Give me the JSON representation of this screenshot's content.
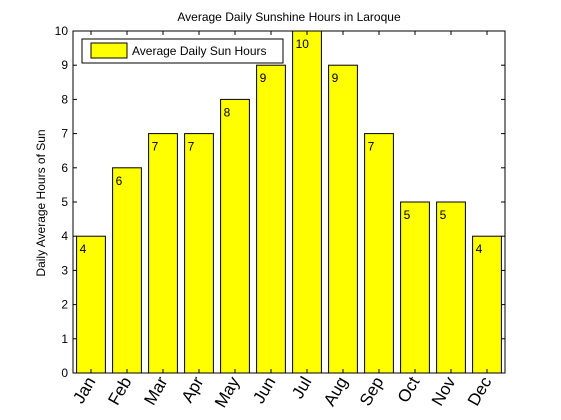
{
  "chart_data": {
    "type": "bar",
    "title": "Average Daily Sunshine Hours in Laroque",
    "xlabel": "",
    "ylabel": "Daily Average Hours of Sun",
    "categories": [
      "Jan",
      "Feb",
      "Mar",
      "Apr",
      "May",
      "Jun",
      "Jul",
      "Aug",
      "Sep",
      "Oct",
      "Nov",
      "Dec"
    ],
    "series": [
      {
        "name": "Average Daily Sun Hours",
        "values": [
          4,
          6,
          7,
          7,
          8,
          9,
          10,
          9,
          7,
          5,
          5,
          4
        ],
        "data_labels": [
          "4",
          "6",
          "7",
          "7",
          "8",
          "9",
          "10",
          "9",
          "7",
          "5",
          "5",
          "4"
        ]
      }
    ],
    "ylim": [
      0,
      10
    ],
    "yticks": [
      0,
      1,
      2,
      3,
      4,
      5,
      6,
      7,
      8,
      9,
      10
    ],
    "ytick_labels": [
      "0",
      "1",
      "2",
      "3",
      "4",
      "5",
      "6",
      "7",
      "8",
      "9",
      "10"
    ],
    "grid": false,
    "legend_position": "top-left",
    "colors": {
      "bar_fill": "#ffff00",
      "bar_stroke": "#000000",
      "background": "#ffffff"
    }
  }
}
